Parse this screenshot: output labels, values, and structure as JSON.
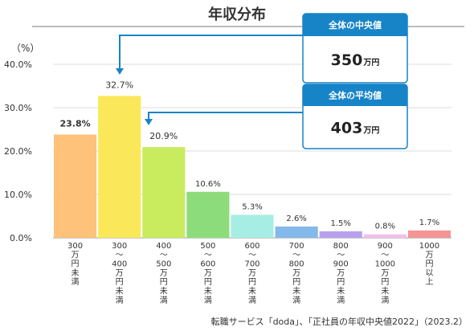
{
  "chart_data": {
    "type": "bar",
    "title": "年収分布",
    "ylabel": "（%）",
    "ylim": [
      0,
      40
    ],
    "yticks": [
      "0.0%",
      "10.0%",
      "20.0%",
      "30.0%",
      "40.0%"
    ],
    "categories": [
      "300 万円未満",
      "300 〜 400 万円未満",
      "400 〜 500 万円未満",
      "500 〜 600 万円未満",
      "600 〜 700 万円未満",
      "700 〜 800 万円未満",
      "800 〜 900 万円未満",
      "900 〜 1000 万円未満",
      "1000 万円以上"
    ],
    "category_lines": [
      [
        "300",
        "万",
        "円",
        "未",
        "満"
      ],
      [
        "300",
        "〜",
        "400",
        "万",
        "円",
        "未",
        "満"
      ],
      [
        "400",
        "〜",
        "500",
        "万",
        "円",
        "未",
        "満"
      ],
      [
        "500",
        "〜",
        "600",
        "万",
        "円",
        "未",
        "満"
      ],
      [
        "600",
        "〜",
        "700",
        "万",
        "円",
        "未",
        "満"
      ],
      [
        "700",
        "〜",
        "800",
        "万",
        "円",
        "未",
        "満"
      ],
      [
        "800",
        "〜",
        "900",
        "万",
        "円",
        "未",
        "満"
      ],
      [
        "900",
        "〜",
        "1000",
        "万",
        "円",
        "未",
        "満"
      ],
      [
        "1000",
        "万",
        "円",
        "以",
        "上"
      ]
    ],
    "values": [
      23.8,
      32.7,
      20.9,
      10.6,
      5.3,
      2.6,
      1.5,
      0.8,
      1.7
    ],
    "value_labels": [
      "23.8%",
      "32.7%",
      "20.9%",
      "10.6%",
      "5.3%",
      "2.6%",
      "1.5%",
      "0.8%",
      "1.7%"
    ],
    "bar_colors": [
      "#ffc27a",
      "#fbe85a",
      "#c8ec5e",
      "#8ddc7c",
      "#a6eee3",
      "#84b9ec",
      "#b9a0ef",
      "#f3bfee",
      "#f49494"
    ],
    "annotations": [
      {
        "label": "全体の中央値",
        "value": "350",
        "unit": "万円"
      },
      {
        "label": "全体の平均値",
        "value": "403",
        "unit": "万円"
      }
    ],
    "accent_color": "#1784c7",
    "source": "転職サービス「doda」、「正社員の年収中央値2022」（2023.2）",
    "grid": true
  }
}
